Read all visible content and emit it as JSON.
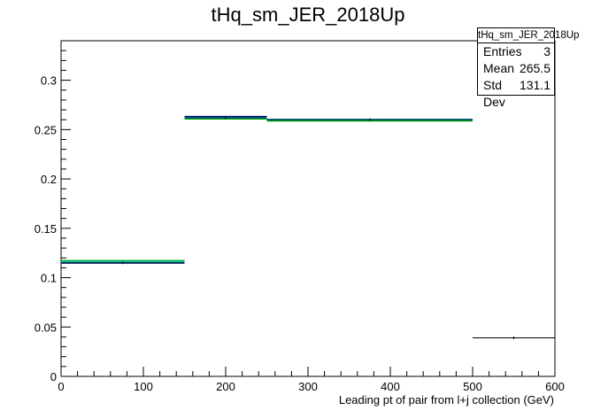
{
  "chart_data": {
    "type": "histogram",
    "title": "tHq_sm_JER_2018Up",
    "xlabel": "Leading pt of pair from l+j collection (GeV)",
    "ylabel": "",
    "xlim": [
      0,
      600
    ],
    "ylim": [
      0,
      0.34
    ],
    "x_ticks": [
      0,
      100,
      200,
      300,
      400,
      500,
      600
    ],
    "y_ticks": [
      0,
      0.05,
      0.1,
      0.15,
      0.2,
      0.25,
      0.3
    ],
    "x_tick_labels": [
      "0",
      "100",
      "200",
      "300",
      "400",
      "500",
      "600"
    ],
    "y_tick_labels": [
      "0",
      "0.05",
      "0.1",
      "0.15",
      "0.2",
      "0.25",
      "0.3"
    ],
    "bins": [
      {
        "low": 0,
        "high": 150,
        "value": 0.115
      },
      {
        "low": 150,
        "high": 250,
        "value": 0.262
      },
      {
        "low": 250,
        "high": 500,
        "value": 0.26
      },
      {
        "low": 500,
        "high": 600,
        "value": 0.039
      }
    ],
    "series": [
      {
        "color": "#000080",
        "values": [
          0.115,
          0.263,
          0.26,
          null
        ]
      },
      {
        "color": "#00a000",
        "values": [
          0.117,
          0.261,
          0.259,
          null
        ]
      },
      {
        "color": "#00c8c8",
        "values": [
          0.116,
          0.262,
          0.26,
          null
        ]
      },
      {
        "color": "#000000",
        "values": [
          0.115,
          0.262,
          0.26,
          0.039
        ]
      }
    ],
    "grid": false
  },
  "stats_box": {
    "title": "tHq_sm_JER_2018Up",
    "entries_label": "Entries",
    "entries_value": "3",
    "mean_label": "Mean",
    "mean_value": "265.5",
    "stddev_label": "Std Dev",
    "stddev_value": "131.1"
  }
}
